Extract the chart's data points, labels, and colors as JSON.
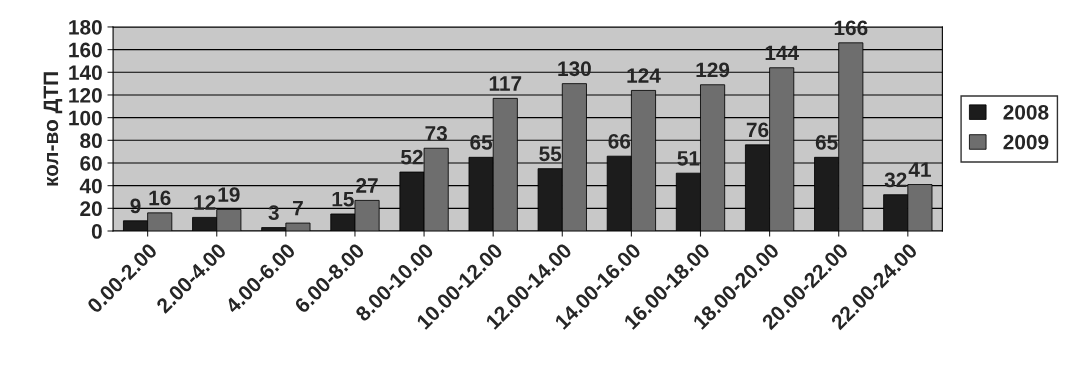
{
  "chart_data": {
    "type": "bar",
    "ylabel": "кол-во ДТП",
    "categories": [
      "0.00-2.00",
      "2.00-4.00",
      "4.00-6.00",
      "6.00-8.00",
      "8.00-10.00",
      "10.00-12.00",
      "12.00-14.00",
      "14.00-16.00",
      "16.00-18.00",
      "18.00-20.00",
      "20.00-22.00",
      "22.00-24.00"
    ],
    "series": [
      {
        "name": "2008",
        "color": "#1c1c1c",
        "values": [
          9,
          12,
          3,
          15,
          52,
          65,
          55,
          66,
          51,
          76,
          65,
          32
        ]
      },
      {
        "name": "2009",
        "color": "#6e6e6e",
        "values": [
          16,
          19,
          7,
          27,
          73,
          117,
          130,
          124,
          129,
          144,
          166,
          41
        ]
      }
    ],
    "ylim": [
      0,
      180
    ],
    "yticks": [
      0,
      20,
      40,
      60,
      80,
      100,
      120,
      140,
      160,
      180
    ],
    "grid": "y",
    "legend": "right",
    "data_labels": true
  }
}
